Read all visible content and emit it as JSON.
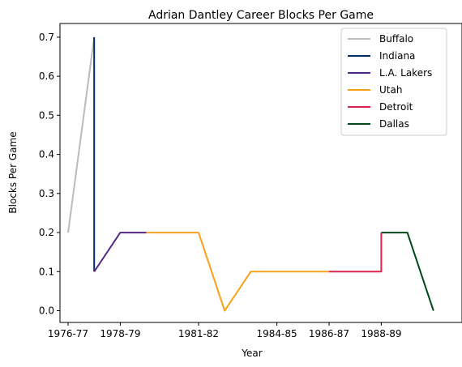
{
  "chart_data": {
    "type": "line",
    "title": "Adrian Dantley Career Blocks Per Game",
    "xlabel": "Year",
    "ylabel": "Blocks Per Game",
    "x_tick_labels": [
      "1976-77",
      "1978-79",
      "1981-82",
      "1984-85",
      "1986-87",
      "1988-89"
    ],
    "y_ticks": [
      0.0,
      0.1,
      0.2,
      0.3,
      0.4,
      0.5,
      0.6,
      0.7
    ],
    "y_tick_labels": [
      "0.0",
      "0.1",
      "0.2",
      "0.3",
      "0.4",
      "0.5",
      "0.6",
      "0.7"
    ],
    "ylim": [
      -0.03,
      0.735
    ],
    "legend_position": "top-right",
    "grid": false,
    "series": [
      {
        "name": "Buffalo",
        "color": "#bbbbbb",
        "x": [
          "1976-77",
          "1977-78"
        ],
        "y": [
          0.2,
          0.7
        ]
      },
      {
        "name": "Indiana",
        "color": "#002d62",
        "x": [
          "1977-78",
          "1977-78"
        ],
        "y": [
          0.7,
          0.1
        ]
      },
      {
        "name": "L.A. Lakers",
        "color": "#552583",
        "x": [
          "1977-78",
          "1978-79",
          "1979-80"
        ],
        "y": [
          0.1,
          0.2,
          0.2
        ]
      },
      {
        "name": "Utah",
        "color": "#f9a01b",
        "x": [
          "1979-80",
          "1980-81",
          "1981-82",
          "1982-83",
          "1983-84",
          "1984-85",
          "1985-86",
          "1986-87"
        ],
        "y": [
          0.2,
          0.2,
          0.2,
          0.0,
          0.1,
          0.1,
          0.1,
          0.1
        ]
      },
      {
        "name": "Detroit",
        "color": "#e0234e",
        "x": [
          "1986-87",
          "1987-88",
          "1988-89",
          "1988-89"
        ],
        "y": [
          0.1,
          0.1,
          0.1,
          0.2
        ]
      },
      {
        "name": "Dallas",
        "color": "#00471b",
        "x": [
          "1988-89",
          "1989-90",
          "1990-91"
        ],
        "y": [
          0.2,
          0.2,
          0.0
        ]
      }
    ]
  }
}
